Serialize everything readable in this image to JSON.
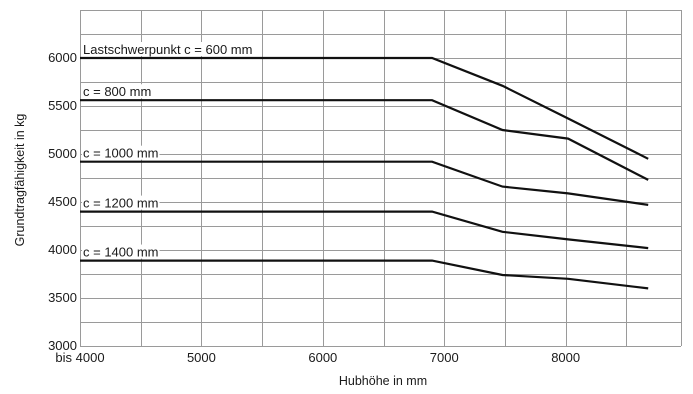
{
  "chart_data": {
    "type": "line",
    "title": "",
    "xlabel": "Hubhöhe in mm",
    "ylabel": "Grundtragfähigkeit in kg",
    "xlim": [
      4000,
      8950
    ],
    "ylim": [
      3000,
      6500
    ],
    "x_ticks": [
      {
        "value": 4000,
        "label": "bis 4000"
      },
      {
        "value": 5000,
        "label": "5000"
      },
      {
        "value": 6000,
        "label": "6000"
      },
      {
        "value": 7000,
        "label": "7000"
      },
      {
        "value": 8000,
        "label": "8000"
      }
    ],
    "y_ticks": [
      {
        "value": 3000,
        "label": "3000"
      },
      {
        "value": 3500,
        "label": "3500"
      },
      {
        "value": 4000,
        "label": "4000"
      },
      {
        "value": 4500,
        "label": "4500"
      },
      {
        "value": 5000,
        "label": "5000"
      },
      {
        "value": 5500,
        "label": "5500"
      },
      {
        "value": 6000,
        "label": "6000"
      }
    ],
    "grid": true,
    "series": [
      {
        "name": "Lastschwerpunkt c = 600 mm",
        "x": [
          4000,
          6900,
          7480,
          8020,
          8680
        ],
        "y": [
          6000,
          6000,
          5710,
          5370,
          4950
        ]
      },
      {
        "name": "c = 800 mm",
        "x": [
          4000,
          6900,
          7480,
          8020,
          8680
        ],
        "y": [
          5560,
          5560,
          5250,
          5160,
          4730
        ]
      },
      {
        "name": "c = 1000 mm",
        "x": [
          4000,
          6900,
          7480,
          8020,
          8680
        ],
        "y": [
          4920,
          4920,
          4660,
          4590,
          4470
        ]
      },
      {
        "name": "c = 1200 mm",
        "x": [
          4000,
          6900,
          7480,
          8020,
          8680
        ],
        "y": [
          4400,
          4400,
          4190,
          4110,
          4020
        ]
      },
      {
        "name": "c = 1400 mm",
        "x": [
          4000,
          6900,
          7480,
          8020,
          8680
        ],
        "y": [
          3890,
          3890,
          3740,
          3700,
          3600
        ]
      }
    ]
  }
}
